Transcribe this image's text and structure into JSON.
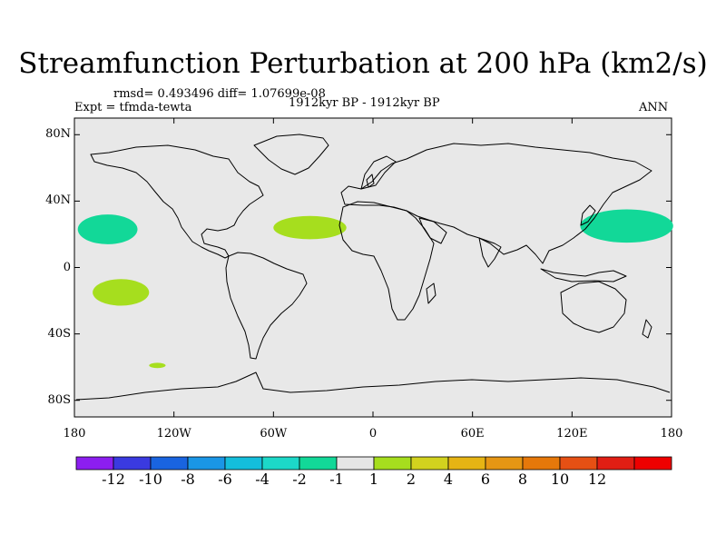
{
  "title": "Streamfunction Perturbation at 200 hPa (km2/s)",
  "stats": "rmsd= 0.493496 diff= 1.07699e-08",
  "experiment": "Expt = tfmda-tewta",
  "period": "1912kyr BP - 1912kyr BP",
  "season": "ANN",
  "axes": {
    "lat_labels": [
      "80N",
      "40N",
      "0",
      "40S",
      "80S"
    ],
    "lat_values": [
      80,
      40,
      0,
      -40,
      -80
    ],
    "lon_labels": [
      "180",
      "120W",
      "60W",
      "0",
      "60E",
      "120E",
      "180"
    ],
    "lon_values": [
      -180,
      -120,
      -60,
      0,
      60,
      120,
      180
    ]
  },
  "colors": {
    "background": "#e8e8e8",
    "coastline": "#000000",
    "neg_1_2": "#12d898",
    "pos_1_2": "#a6de1e"
  },
  "chart_data": {
    "type": "map",
    "projection": "cylindrical-equidistant",
    "lon_range": [
      -180,
      180
    ],
    "lat_range": [
      -90,
      90
    ],
    "anomalies": [
      {
        "name": "north-pacific-east",
        "lon": -160,
        "lat": 23,
        "rlon": 18,
        "rlat": 9,
        "level": "-2 to -1"
      },
      {
        "name": "north-atlantic",
        "lon": -38,
        "lat": 24,
        "rlon": 22,
        "rlat": 7,
        "level": "1 to 2"
      },
      {
        "name": "south-pacific",
        "lon": -152,
        "lat": -15,
        "rlon": 17,
        "rlat": 8,
        "level": "1 to 2"
      },
      {
        "name": "small-south-pacific",
        "lon": -130,
        "lat": -59,
        "rlon": 5,
        "rlat": 1.6,
        "level": "1 to 2"
      },
      {
        "name": "northwest-pacific",
        "lon": 153,
        "lat": 25,
        "rlon": 28,
        "rlat": 10,
        "level": "-2 to -1"
      }
    ]
  },
  "colorbar": {
    "colors": [
      "#8c1ef0",
      "#3a3ae0",
      "#1964e0",
      "#1a96e6",
      "#14bedc",
      "#1cd8c8",
      "#12d898",
      "#e6e6e6",
      "#a6de1e",
      "#d2d21e",
      "#e6b414",
      "#e69614",
      "#e6780a",
      "#e65014",
      "#e11e14",
      "#ee0000"
    ],
    "labels": [
      "-12",
      "-10",
      "-8",
      "-6",
      "-4",
      "-2",
      "-1",
      "1",
      "2",
      "4",
      "6",
      "8",
      "10",
      "12"
    ]
  }
}
